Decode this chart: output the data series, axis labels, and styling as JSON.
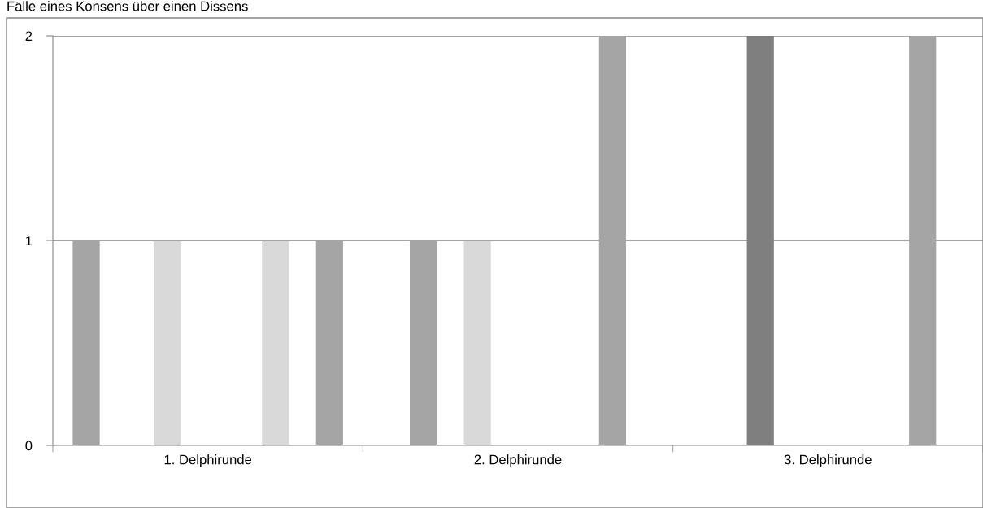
{
  "chart_data": {
    "type": "bar",
    "title": "Fälle eines Konsens über einen Dissens",
    "categories": [
      "1. Delphirunde",
      "2. Delphirunde",
      "3. Delphirunde"
    ],
    "series": [
      {
        "color": "#a5a5a5",
        "values": [
          1,
          null,
          null
        ]
      },
      {
        "color": "#a5a5a5",
        "values": [
          null,
          1,
          null
        ]
      },
      {
        "color": "#7f7f7f",
        "values": [
          null,
          null,
          2
        ]
      },
      {
        "color": "#d9d9d9",
        "values": [
          1,
          1,
          null
        ]
      },
      {
        "values": [
          null,
          null,
          null
        ]
      },
      {
        "values": [
          null,
          null,
          null
        ]
      },
      {
        "values": [
          null,
          null,
          null
        ]
      },
      {
        "color": "#d9d9d9",
        "values": [
          1,
          null,
          null
        ]
      },
      {
        "color": "#a5a5a5",
        "values": [
          null,
          2,
          2
        ]
      },
      {
        "color": "#a5a5a5",
        "values": [
          1,
          null,
          null
        ]
      }
    ],
    "ylim": [
      0,
      2
    ],
    "yticks": [
      0,
      1,
      2
    ],
    "grid": "y"
  }
}
